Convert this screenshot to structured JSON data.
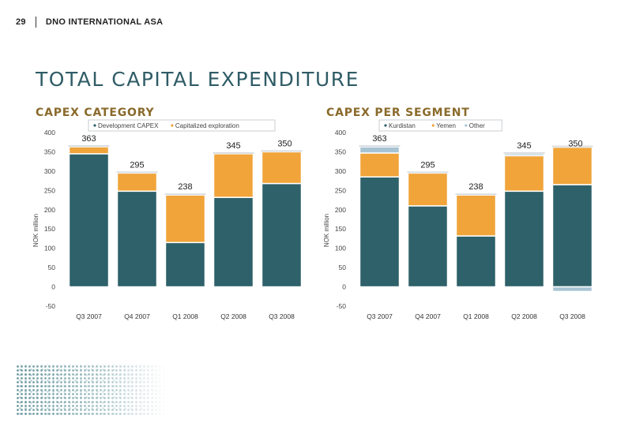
{
  "header": {
    "page_number": "29",
    "company": "DNO INTERNATIONAL ASA"
  },
  "page_title": "TOTAL CAPITAL EXPENDITURE",
  "colors": {
    "teal": "#2e6169",
    "orange": "#f0a43a",
    "lightblue": "#a8c4d4",
    "title": "#2f5c66",
    "subtitle": "#8a6a2b"
  },
  "chart_data": [
    {
      "type": "bar",
      "stacked": true,
      "title": "CAPEX CATEGORY",
      "ylabel": "NOK million",
      "xlabel": "",
      "ylim": [
        -50,
        400
      ],
      "yticks": [
        -50,
        0,
        50,
        100,
        150,
        200,
        250,
        300,
        350,
        400
      ],
      "grid": false,
      "legend": "top",
      "categories": [
        "Q3 2007",
        "Q4 2007",
        "Q1 2008",
        "Q2 2008",
        "Q3 2008"
      ],
      "series": [
        {
          "name": "Development CAPEX",
          "color": "#2e6169",
          "values": [
            345,
            248,
            115,
            232,
            268
          ]
        },
        {
          "name": "Capitalized exploration",
          "color": "#f0a43a",
          "values": [
            18,
            47,
            123,
            113,
            82
          ]
        }
      ],
      "totals": [
        363,
        295,
        238,
        345,
        350
      ]
    },
    {
      "type": "bar",
      "stacked": true,
      "title": "CAPEX PER SEGMENT",
      "ylabel": "NOK million",
      "xlabel": "",
      "ylim": [
        -50,
        400
      ],
      "yticks": [
        -50,
        0,
        50,
        100,
        150,
        200,
        250,
        300,
        350,
        400
      ],
      "grid": false,
      "legend": "top",
      "categories": [
        "Q3 2007",
        "Q4 2007",
        "Q1 2008",
        "Q2 2008",
        "Q3 2008"
      ],
      "series": [
        {
          "name": "Kurdistan",
          "color": "#2e6169",
          "values": [
            285,
            210,
            132,
            248,
            265
          ]
        },
        {
          "name": "Yemen",
          "color": "#f0a43a",
          "values": [
            62,
            85,
            106,
            92,
            97
          ]
        },
        {
          "name": "Other",
          "color": "#a8c4d4",
          "values": [
            16,
            0,
            0,
            5,
            -12
          ]
        }
      ],
      "totals": [
        363,
        295,
        238,
        345,
        350
      ]
    }
  ]
}
